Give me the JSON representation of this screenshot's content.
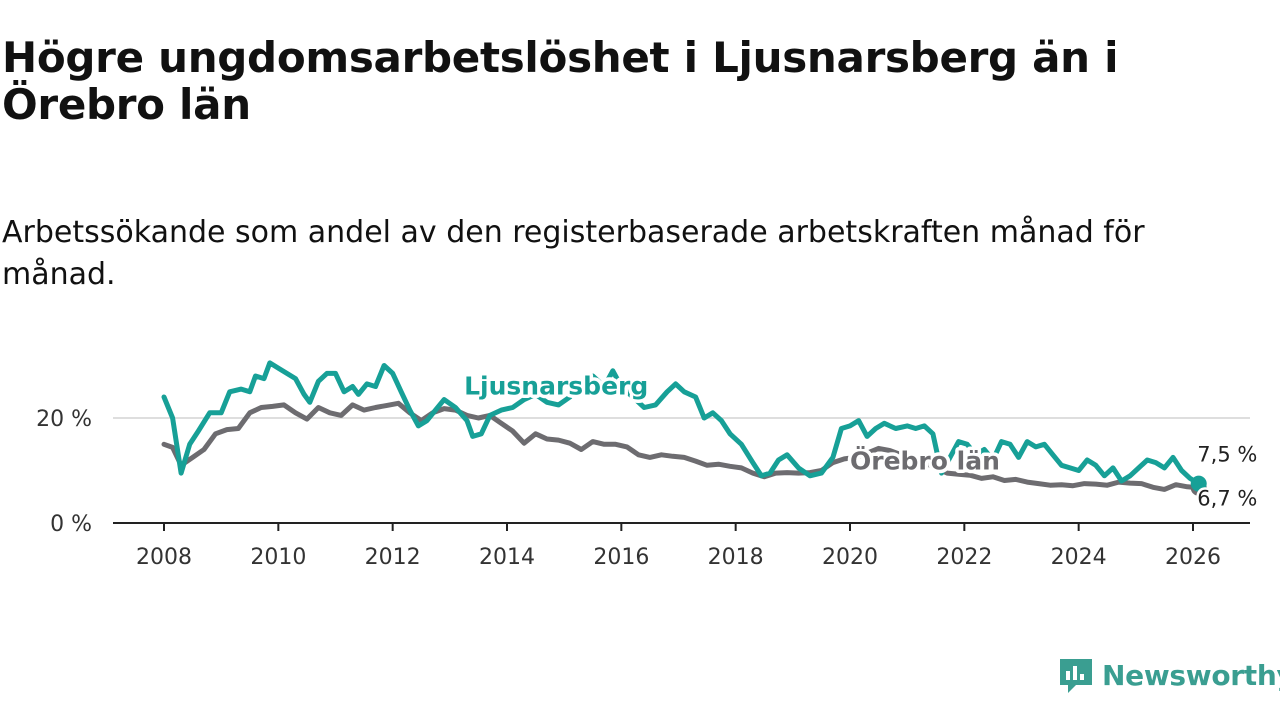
{
  "title": "Högre ungdomsarbetslöshet i Ljusnarsberg än i Örebro län",
  "subtitle": "Arbetssökande som andel av den registerbaserade arbetskraften månad för månad.",
  "brand": {
    "name": "Newsworthy",
    "color": "#3a9e91",
    "icon": "newsworthy-logo-icon"
  },
  "chart_data": {
    "type": "line",
    "title": "Högre ungdomsarbetslöshet i Ljusnarsberg än i Örebro län",
    "subtitle": "Arbetssökande som andel av den registerbaserade arbetskraften månad för månad.",
    "xlabel": "",
    "ylabel": "",
    "x_range": [
      2008,
      2026.17
    ],
    "ylim": [
      0,
      30
    ],
    "y_ticks": [
      {
        "value": 0,
        "label": "0 %"
      },
      {
        "value": 20,
        "label": "20 %"
      }
    ],
    "x_ticks": [
      {
        "value": 2008,
        "label": "2008"
      },
      {
        "value": 2010,
        "label": "2010"
      },
      {
        "value": 2012,
        "label": "2012"
      },
      {
        "value": 2014,
        "label": "2014"
      },
      {
        "value": 2016,
        "label": "2016"
      },
      {
        "value": 2018,
        "label": "2018"
      },
      {
        "value": 2020,
        "label": "2020"
      },
      {
        "value": 2022,
        "label": "2022"
      },
      {
        "value": 2024,
        "label": "2024"
      },
      {
        "value": 2026,
        "label": "2026"
      }
    ],
    "grid": "horizontal",
    "series": [
      {
        "name": "Örebro län",
        "label": "Örebro län",
        "color": "#6d6c70",
        "end_label": "6,7 %",
        "points": [
          [
            2008.0,
            15
          ],
          [
            2008.15,
            14.4
          ],
          [
            2008.3,
            11
          ],
          [
            2008.5,
            12.5
          ],
          [
            2008.7,
            14
          ],
          [
            2008.9,
            17
          ],
          [
            2009.1,
            17.8
          ],
          [
            2009.3,
            18
          ],
          [
            2009.5,
            21
          ],
          [
            2009.7,
            22
          ],
          [
            2009.9,
            22.2
          ],
          [
            2010.1,
            22.5
          ],
          [
            2010.3,
            21
          ],
          [
            2010.5,
            19.8
          ],
          [
            2010.7,
            22
          ],
          [
            2010.9,
            21
          ],
          [
            2011.1,
            20.5
          ],
          [
            2011.3,
            22.5
          ],
          [
            2011.5,
            21.5
          ],
          [
            2011.7,
            22
          ],
          [
            2011.9,
            22.4
          ],
          [
            2012.1,
            22.8
          ],
          [
            2012.3,
            21
          ],
          [
            2012.5,
            19.5
          ],
          [
            2012.7,
            21
          ],
          [
            2012.9,
            21.8
          ],
          [
            2013.1,
            21.5
          ],
          [
            2013.3,
            20.5
          ],
          [
            2013.5,
            20
          ],
          [
            2013.7,
            20.5
          ],
          [
            2013.9,
            19
          ],
          [
            2014.1,
            17.5
          ],
          [
            2014.3,
            15.2
          ],
          [
            2014.5,
            17
          ],
          [
            2014.7,
            16
          ],
          [
            2014.9,
            15.8
          ],
          [
            2015.1,
            15.2
          ],
          [
            2015.3,
            14
          ],
          [
            2015.5,
            15.5
          ],
          [
            2015.7,
            15
          ],
          [
            2015.9,
            15
          ],
          [
            2016.1,
            14.5
          ],
          [
            2016.3,
            13
          ],
          [
            2016.5,
            12.5
          ],
          [
            2016.7,
            13
          ],
          [
            2016.9,
            12.7
          ],
          [
            2017.1,
            12.5
          ],
          [
            2017.3,
            11.8
          ],
          [
            2017.5,
            11
          ],
          [
            2017.7,
            11.2
          ],
          [
            2017.9,
            10.8
          ],
          [
            2018.1,
            10.5
          ],
          [
            2018.3,
            9.5
          ],
          [
            2018.5,
            8.8
          ],
          [
            2018.7,
            9.5
          ],
          [
            2018.9,
            9.6
          ],
          [
            2019.1,
            9.5
          ],
          [
            2019.3,
            9.6
          ],
          [
            2019.5,
            10
          ],
          [
            2019.7,
            11.5
          ],
          [
            2019.9,
            12.2
          ],
          [
            2020.1,
            12.5
          ],
          [
            2020.3,
            13.3
          ],
          [
            2020.5,
            14.2
          ],
          [
            2020.7,
            13.8
          ],
          [
            2020.9,
            13
          ],
          [
            2021.1,
            12.2
          ],
          [
            2021.3,
            11.5
          ],
          [
            2021.5,
            10.5
          ],
          [
            2021.7,
            9.5
          ],
          [
            2021.9,
            9.3
          ],
          [
            2022.1,
            9.1
          ],
          [
            2022.3,
            8.5
          ],
          [
            2022.5,
            8.8
          ],
          [
            2022.7,
            8.1
          ],
          [
            2022.9,
            8.3
          ],
          [
            2023.1,
            7.8
          ],
          [
            2023.3,
            7.5
          ],
          [
            2023.5,
            7.2
          ],
          [
            2023.7,
            7.3
          ],
          [
            2023.9,
            7.1
          ],
          [
            2024.1,
            7.5
          ],
          [
            2024.3,
            7.4
          ],
          [
            2024.5,
            7.2
          ],
          [
            2024.7,
            7.8
          ],
          [
            2024.9,
            7.6
          ],
          [
            2025.1,
            7.5
          ],
          [
            2025.3,
            6.8
          ],
          [
            2025.5,
            6.4
          ],
          [
            2025.7,
            7.3
          ],
          [
            2025.9,
            6.9
          ],
          [
            2026.1,
            6.7
          ]
        ]
      },
      {
        "name": "Ljusnarsberg",
        "label": "Ljusnarsberg",
        "color": "#17a097",
        "end_label": "7,5 %",
        "points": [
          [
            2008.0,
            24
          ],
          [
            2008.15,
            20
          ],
          [
            2008.3,
            9.5
          ],
          [
            2008.45,
            15
          ],
          [
            2008.6,
            17.5
          ],
          [
            2008.8,
            21
          ],
          [
            2009.0,
            21
          ],
          [
            2009.15,
            25
          ],
          [
            2009.35,
            25.5
          ],
          [
            2009.5,
            25
          ],
          [
            2009.6,
            28
          ],
          [
            2009.75,
            27.5
          ],
          [
            2009.85,
            30.5
          ],
          [
            2010.0,
            29.5
          ],
          [
            2010.15,
            28.5
          ],
          [
            2010.3,
            27.5
          ],
          [
            2010.45,
            24.5
          ],
          [
            2010.55,
            23
          ],
          [
            2010.7,
            27
          ],
          [
            2010.85,
            28.5
          ],
          [
            2011.0,
            28.5
          ],
          [
            2011.15,
            25
          ],
          [
            2011.3,
            26
          ],
          [
            2011.4,
            24.5
          ],
          [
            2011.55,
            26.5
          ],
          [
            2011.7,
            26
          ],
          [
            2011.85,
            30
          ],
          [
            2012.0,
            28.5
          ],
          [
            2012.15,
            25
          ],
          [
            2012.3,
            21.5
          ],
          [
            2012.45,
            18.5
          ],
          [
            2012.6,
            19.5
          ],
          [
            2012.75,
            21.5
          ],
          [
            2012.9,
            23.5
          ],
          [
            2013.1,
            22
          ],
          [
            2013.3,
            19.5
          ],
          [
            2013.4,
            16.5
          ],
          [
            2013.55,
            17
          ],
          [
            2013.7,
            20.5
          ],
          [
            2013.9,
            21.5
          ],
          [
            2014.1,
            22
          ],
          [
            2014.3,
            23.5
          ],
          [
            2014.5,
            24.5
          ],
          [
            2014.7,
            23
          ],
          [
            2014.9,
            22.5
          ],
          [
            2015.1,
            24
          ],
          [
            2015.3,
            27
          ],
          [
            2015.5,
            28
          ],
          [
            2015.7,
            26
          ],
          [
            2015.85,
            29
          ],
          [
            2016.0,
            26
          ],
          [
            2016.2,
            24
          ],
          [
            2016.4,
            22
          ],
          [
            2016.6,
            22.5
          ],
          [
            2016.8,
            25
          ],
          [
            2016.95,
            26.5
          ],
          [
            2017.1,
            25
          ],
          [
            2017.3,
            24
          ],
          [
            2017.45,
            20
          ],
          [
            2017.6,
            21
          ],
          [
            2017.75,
            19.5
          ],
          [
            2017.9,
            17
          ],
          [
            2018.1,
            15
          ],
          [
            2018.3,
            11.5
          ],
          [
            2018.45,
            9
          ],
          [
            2018.6,
            9.5
          ],
          [
            2018.75,
            12
          ],
          [
            2018.9,
            13
          ],
          [
            2019.1,
            10.5
          ],
          [
            2019.3,
            9
          ],
          [
            2019.5,
            9.5
          ],
          [
            2019.7,
            12.5
          ],
          [
            2019.85,
            18
          ],
          [
            2020.0,
            18.5
          ],
          [
            2020.15,
            19.5
          ],
          [
            2020.3,
            16.5
          ],
          [
            2020.45,
            18
          ],
          [
            2020.6,
            19
          ],
          [
            2020.8,
            18
          ],
          [
            2021.0,
            18.5
          ],
          [
            2021.15,
            18
          ],
          [
            2021.3,
            18.5
          ],
          [
            2021.45,
            17
          ],
          [
            2021.6,
            9.5
          ],
          [
            2021.75,
            12.5
          ],
          [
            2021.9,
            15.5
          ],
          [
            2022.05,
            15
          ],
          [
            2022.2,
            13
          ],
          [
            2022.35,
            14
          ],
          [
            2022.5,
            12
          ],
          [
            2022.65,
            15.5
          ],
          [
            2022.8,
            15
          ],
          [
            2022.95,
            12.5
          ],
          [
            2023.1,
            15.5
          ],
          [
            2023.25,
            14.5
          ],
          [
            2023.4,
            15
          ],
          [
            2023.55,
            13
          ],
          [
            2023.7,
            11
          ],
          [
            2023.85,
            10.5
          ],
          [
            2024.0,
            10
          ],
          [
            2024.15,
            12
          ],
          [
            2024.3,
            11
          ],
          [
            2024.45,
            9
          ],
          [
            2024.6,
            10.5
          ],
          [
            2024.75,
            8
          ],
          [
            2024.9,
            9
          ],
          [
            2025.05,
            10.5
          ],
          [
            2025.2,
            12
          ],
          [
            2025.35,
            11.5
          ],
          [
            2025.5,
            10.5
          ],
          [
            2025.65,
            12.5
          ],
          [
            2025.8,
            10
          ],
          [
            2025.95,
            8.5
          ],
          [
            2026.1,
            7.5
          ]
        ]
      }
    ],
    "annotations": [
      {
        "text": "Ljusnarsberg",
        "series": "Ljusnarsberg",
        "at": [
          2013.25,
          24.5
        ]
      },
      {
        "text": "Örebro län",
        "series": "Örebro län",
        "at": [
          2020.0,
          10.2
        ]
      },
      {
        "text": "7,5 %",
        "series": "Ljusnarsberg",
        "at": [
          2026.6,
          11.7
        ]
      },
      {
        "text": "6,7 %",
        "series": "Örebro län",
        "at": [
          2026.6,
          3.3
        ]
      }
    ]
  }
}
